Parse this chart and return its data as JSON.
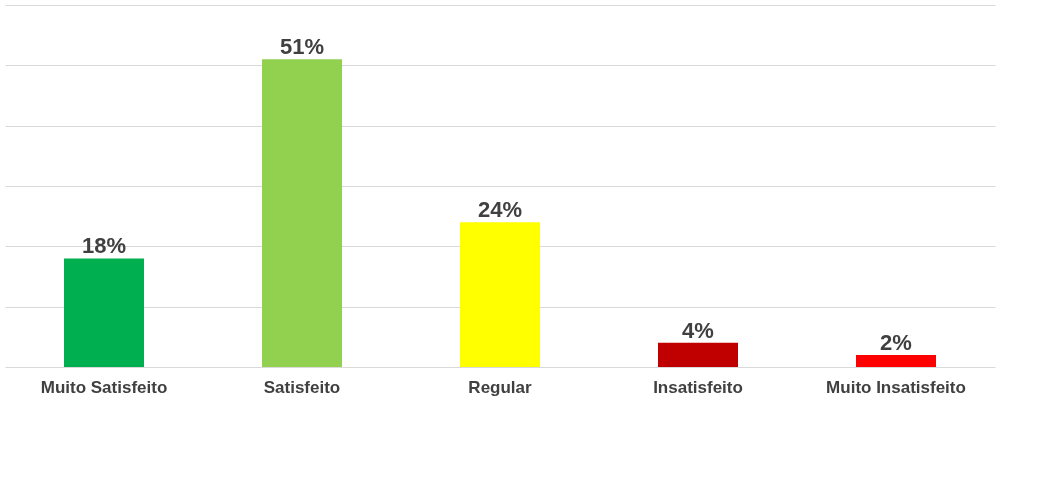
{
  "chart_data": {
    "type": "bar",
    "categories": [
      "Muito Satisfeito",
      "Satisfeito",
      "Regular",
      "Insatisfeito",
      "Muito Insatisfeito"
    ],
    "values": [
      18,
      51,
      24,
      4,
      2
    ],
    "colors": [
      "#00b050",
      "#92d050",
      "#ffff00",
      "#c00000",
      "#ff0000"
    ],
    "value_labels": [
      "18%",
      "51%",
      "24%",
      "4%",
      "2%"
    ],
    "ylim": [
      0,
      60
    ],
    "yticks": [
      0,
      10,
      20,
      30,
      40,
      50,
      60
    ],
    "grid": "y",
    "tick_labels": "x"
  }
}
